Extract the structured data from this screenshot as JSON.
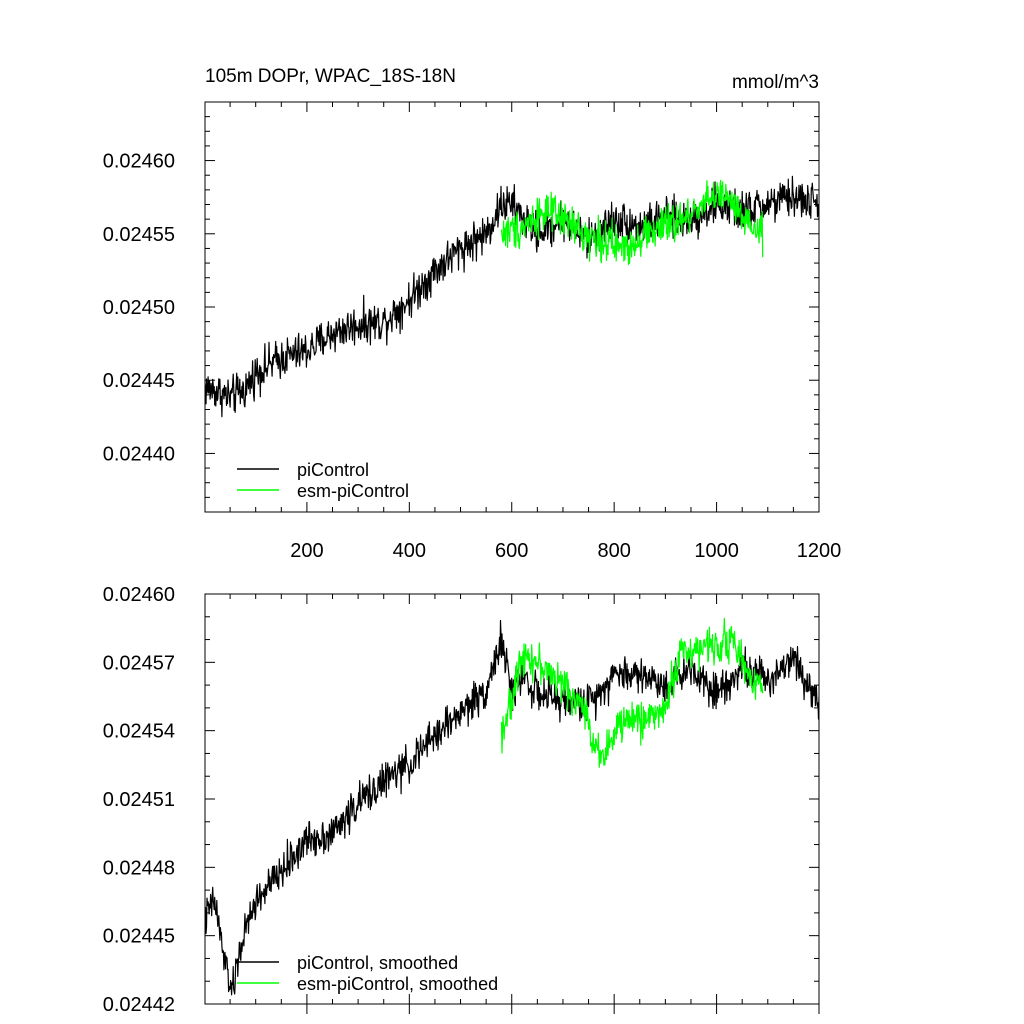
{
  "chart_data": [
    {
      "type": "line",
      "title": "105m DOPr, WPAC_18S-18N",
      "units": "mmol/m^3",
      "xlabel": "",
      "ylabel": "",
      "xlim": [
        1,
        1200
      ],
      "ylim": [
        0.02436,
        0.02464
      ],
      "x_ticks": [
        200,
        400,
        600,
        800,
        1000,
        1200
      ],
      "x_tick_labels": [
        "200",
        "400",
        "600",
        "800",
        "1000",
        "1200"
      ],
      "y_ticks": [
        0.0244,
        0.02445,
        0.0245,
        0.02455,
        0.0246
      ],
      "y_tick_labels": [
        "0.02440",
        "0.02445",
        "0.02450",
        "0.02455",
        "0.02460"
      ],
      "legend_position": "bottom-left",
      "series": [
        {
          "name": "piControl",
          "color": "#000000",
          "x_range": [
            1,
            1200
          ],
          "anchor_x": [
            1,
            20,
            50,
            80,
            100,
            150,
            200,
            250,
            300,
            350,
            400,
            450,
            500,
            550,
            580,
            600,
            650,
            700,
            750,
            800,
            850,
            900,
            950,
            1000,
            1050,
            1100,
            1150,
            1200
          ],
          "anchor_y": [
            0.024445,
            0.024443,
            0.024438,
            0.024444,
            0.024455,
            0.024465,
            0.02447,
            0.024482,
            0.024488,
            0.02449,
            0.024505,
            0.024525,
            0.02454,
            0.02455,
            0.02457,
            0.02457,
            0.02455,
            0.02456,
            0.024545,
            0.02456,
            0.024555,
            0.02456,
            0.02456,
            0.02457,
            0.024565,
            0.02457,
            0.024575,
            0.02457
          ],
          "noise_amplitude": 2e-05
        },
        {
          "name": "esm-piControl",
          "color": "#00ff00",
          "x_range": [
            580,
            1090
          ],
          "anchor_x": [
            580,
            620,
            660,
            700,
            740,
            780,
            820,
            860,
            900,
            940,
            980,
            1020,
            1060,
            1090
          ],
          "anchor_y": [
            0.02455,
            0.024555,
            0.024565,
            0.02456,
            0.02455,
            0.024545,
            0.02454,
            0.02455,
            0.024555,
            0.02456,
            0.024575,
            0.024575,
            0.024555,
            0.02455
          ],
          "noise_amplitude": 2e-05
        }
      ]
    },
    {
      "type": "line",
      "title": "",
      "xlabel": "",
      "ylabel": "",
      "xlim": [
        1,
        1200
      ],
      "ylim": [
        0.02442,
        0.0246
      ],
      "x_ticks": [
        200,
        400,
        600,
        800,
        1000,
        1200
      ],
      "y_ticks": [
        0.02442,
        0.02445,
        0.02448,
        0.02451,
        0.02454,
        0.02457,
        0.0246
      ],
      "y_tick_labels": [
        "0.02442",
        "0.02445",
        "0.02448",
        "0.02451",
        "0.02454",
        "0.02457",
        "0.02460"
      ],
      "legend_position": "bottom-left",
      "series": [
        {
          "name": "piControl, smoothed",
          "color": "#000000",
          "x_range": [
            1,
            1200
          ],
          "anchor_x": [
            1,
            10,
            20,
            40,
            55,
            70,
            100,
            150,
            200,
            250,
            300,
            350,
            400,
            450,
            500,
            550,
            580,
            600,
            620,
            650,
            700,
            750,
            800,
            850,
            900,
            950,
            1000,
            1050,
            1100,
            1150,
            1200
          ],
          "anchor_y": [
            0.024456,
            0.024462,
            0.024465,
            0.024438,
            0.024425,
            0.024445,
            0.024465,
            0.024478,
            0.024492,
            0.024495,
            0.024508,
            0.024518,
            0.024525,
            0.024538,
            0.024548,
            0.024558,
            0.02458,
            0.024556,
            0.024565,
            0.024556,
            0.024553,
            0.024552,
            0.024565,
            0.024565,
            0.02456,
            0.024568,
            0.024557,
            0.024568,
            0.024562,
            0.024573,
            0.024552
          ],
          "noise_amplitude": 1.2e-05
        },
        {
          "name": "esm-piControl, smoothed",
          "color": "#00ff00",
          "x_range": [
            580,
            1090
          ],
          "anchor_x": [
            580,
            600,
            620,
            660,
            700,
            740,
            760,
            780,
            820,
            860,
            900,
            930,
            960,
            1000,
            1030,
            1060,
            1090
          ],
          "anchor_y": [
            0.02454,
            0.024552,
            0.024575,
            0.024568,
            0.02456,
            0.02455,
            0.024535,
            0.02453,
            0.024545,
            0.024545,
            0.02455,
            0.024575,
            0.024575,
            0.024578,
            0.02458,
            0.024565,
            0.02456
          ],
          "noise_amplitude": 1.2e-05
        }
      ]
    }
  ]
}
